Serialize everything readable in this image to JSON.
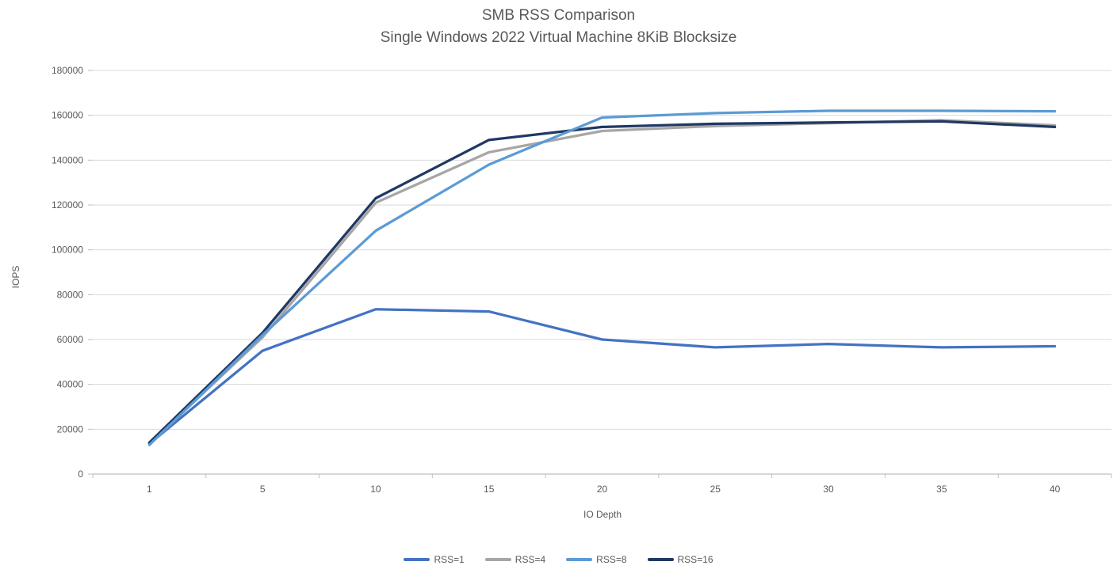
{
  "chart_data": {
    "type": "line",
    "title": "SMB RSS Comparison",
    "subtitle": "Single Windows 2022 Virtual Machine 8KiB Blocksize",
    "xlabel": "IO Depth",
    "ylabel": "IOPS",
    "categories": [
      1,
      5,
      10,
      15,
      20,
      25,
      30,
      35,
      40
    ],
    "ylim": [
      0,
      180000
    ],
    "ytick_step": 20000,
    "grid": true,
    "legend_position": "bottom",
    "background_color": "#ffffff",
    "axis_color": "#BFBFBF",
    "gridline_color": "#D9D9D9",
    "text_color": "#595959",
    "series": [
      {
        "name": "RSS=1",
        "color": "#4472C4",
        "values": [
          13500,
          55000,
          73500,
          72500,
          60000,
          56500,
          58000,
          56500,
          57000
        ]
      },
      {
        "name": "RSS=4",
        "color": "#A6A6A6",
        "values": [
          13500,
          61000,
          121000,
          143500,
          153000,
          155200,
          156500,
          157800,
          155500
        ]
      },
      {
        "name": "RSS=8",
        "color": "#5B9BD5",
        "values": [
          13000,
          62000,
          108500,
          138000,
          159000,
          161000,
          162000,
          162000,
          161800
        ]
      },
      {
        "name": "RSS=16",
        "color": "#203864",
        "values": [
          14000,
          63000,
          123000,
          149000,
          154800,
          156200,
          156800,
          157300,
          154800
        ]
      }
    ],
    "draw_order": [
      "RSS=1",
      "RSS=4",
      "RSS=16",
      "RSS=8"
    ]
  }
}
